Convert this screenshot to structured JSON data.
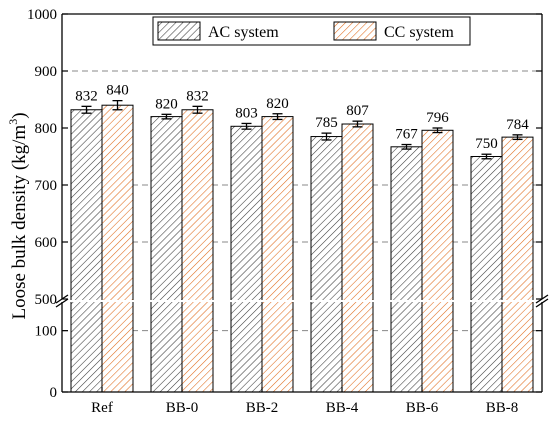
{
  "chart_data": {
    "type": "bar",
    "title": "",
    "xlabel": "",
    "ylabel": "Loose bulk density (kg/m³)",
    "ylabel_main": "Loose bulk density (kg/m",
    "ylabel_sup": "3",
    "ylabel_tail": ")",
    "categories": [
      "Ref",
      "BB-0",
      "BB-2",
      "BB-4",
      "BB-6",
      "BB-8"
    ],
    "series": [
      {
        "name": "AC system",
        "values": [
          832,
          820,
          803,
          785,
          767,
          750
        ],
        "errors": [
          6,
          4,
          5,
          6,
          4,
          4
        ],
        "labels": [
          "832",
          "820",
          "803",
          "785",
          "767",
          "750"
        ],
        "hatch_color": "#3a3a3a"
      },
      {
        "name": "CC system",
        "values": [
          840,
          832,
          820,
          807,
          796,
          784
        ],
        "errors": [
          8,
          6,
          5,
          5,
          4,
          4
        ],
        "labels": [
          "840",
          "832",
          "820",
          "807",
          "796",
          "784"
        ],
        "hatch_color": "#e06a1a"
      }
    ],
    "axis_break": {
      "lower_range": [
        0,
        150
      ],
      "upper_range": [
        500,
        1000
      ]
    },
    "y_ticks_lower": [
      {
        "value": 0,
        "label": "0"
      },
      {
        "value": 100,
        "label": "100"
      }
    ],
    "y_ticks_upper": [
      {
        "value": 500,
        "label": "500"
      },
      {
        "value": 600,
        "label": "600"
      },
      {
        "value": 700,
        "label": "700"
      },
      {
        "value": 800,
        "label": "800"
      },
      {
        "value": 900,
        "label": "900"
      },
      {
        "value": 1000,
        "label": "1000"
      }
    ],
    "gridlines": [
      100,
      600,
      700,
      900
    ],
    "grid": "dashed horizontal",
    "legend_position": "top-center"
  }
}
